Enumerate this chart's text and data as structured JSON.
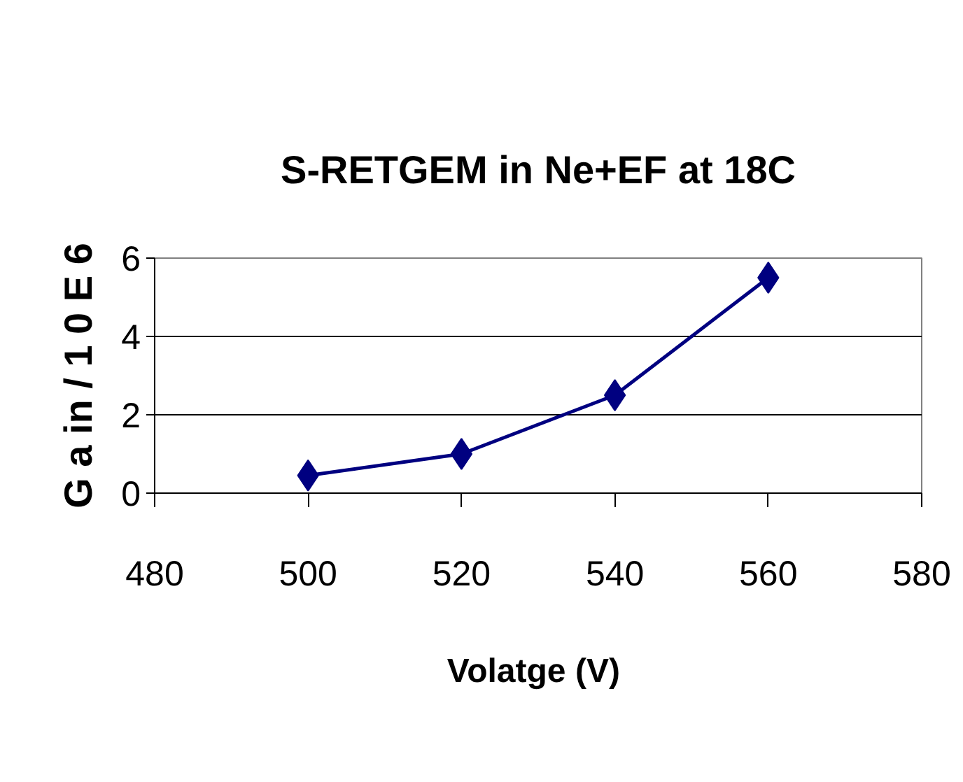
{
  "chart_data": {
    "type": "line",
    "title": "S-RETGEM in Ne+EF at 18C",
    "xlabel": "Volatge  (V)",
    "ylabel": "G a in / 1 0 E 6",
    "x": [
      500,
      520,
      540,
      560
    ],
    "series": [
      {
        "color": "#000080",
        "values": [
          0.45,
          1.0,
          2.5,
          5.5
        ]
      }
    ],
    "xlim": [
      480,
      580
    ],
    "xticks": [
      480,
      500,
      520,
      540,
      560,
      580
    ],
    "ylim": [
      0,
      6
    ],
    "yticks": [
      0,
      2,
      4,
      6
    ],
    "grid": "y",
    "marker": "diamond",
    "line_style": "solid"
  }
}
